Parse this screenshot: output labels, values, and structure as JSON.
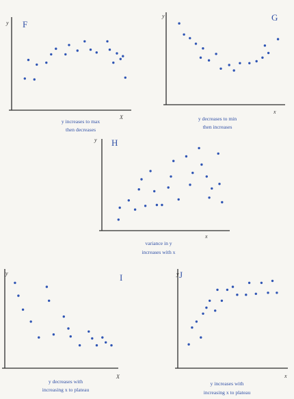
{
  "colors": {
    "axis": "#2c2c2c",
    "point": "#2f55b4",
    "text": "#2f4fa6"
  },
  "chart_data": [
    {
      "type": "scatter",
      "title": "F",
      "xlabel": "X",
      "ylabel": "y",
      "caption": [
        "y increases to max",
        "then decreases"
      ],
      "xlim": [
        0,
        10
      ],
      "ylim": [
        0,
        10
      ],
      "points": [
        [
          1.1,
          3.4
        ],
        [
          1.4,
          5.4
        ],
        [
          1.9,
          3.3
        ],
        [
          2.1,
          4.9
        ],
        [
          2.9,
          5.1
        ],
        [
          3.3,
          6.0
        ],
        [
          3.7,
          6.6
        ],
        [
          4.5,
          6.0
        ],
        [
          4.8,
          7.0
        ],
        [
          5.5,
          6.4
        ],
        [
          6.1,
          7.4
        ],
        [
          6.6,
          6.5
        ],
        [
          7.1,
          6.2
        ],
        [
          8.0,
          7.4
        ],
        [
          8.2,
          6.5
        ],
        [
          8.5,
          5.1
        ],
        [
          8.8,
          6.1
        ],
        [
          9.1,
          5.5
        ],
        [
          9.3,
          5.8
        ],
        [
          9.5,
          3.5
        ]
      ]
    },
    {
      "type": "scatter",
      "title": "G",
      "xlabel": "x",
      "ylabel": "y",
      "caption": [
        "y decreases to min",
        "then increases"
      ],
      "xlim": [
        0,
        10
      ],
      "ylim": [
        0,
        10
      ],
      "points": [
        [
          1.1,
          8.8
        ],
        [
          1.5,
          7.6
        ],
        [
          2.0,
          7.2
        ],
        [
          2.5,
          6.6
        ],
        [
          2.9,
          5.1
        ],
        [
          3.1,
          6.1
        ],
        [
          3.6,
          4.8
        ],
        [
          4.2,
          5.5
        ],
        [
          4.6,
          3.9
        ],
        [
          5.3,
          4.3
        ],
        [
          5.7,
          3.7
        ],
        [
          6.2,
          4.5
        ],
        [
          7.0,
          4.5
        ],
        [
          7.6,
          4.7
        ],
        [
          8.1,
          5.1
        ],
        [
          8.3,
          6.4
        ],
        [
          8.6,
          5.6
        ],
        [
          9.4,
          7.1
        ]
      ]
    },
    {
      "type": "scatter",
      "title": "H",
      "xlabel": "x",
      "ylabel": "y",
      "caption": [
        "variance in y",
        "increases with x"
      ],
      "xlim": [
        0,
        10
      ],
      "ylim": [
        0,
        10
      ],
      "points": [
        [
          1.3,
          1.2
        ],
        [
          1.4,
          2.5
        ],
        [
          2.1,
          3.3
        ],
        [
          2.6,
          2.3
        ],
        [
          2.9,
          4.5
        ],
        [
          3.1,
          5.6
        ],
        [
          3.4,
          2.7
        ],
        [
          3.8,
          6.5
        ],
        [
          4.1,
          4.3
        ],
        [
          4.3,
          2.8
        ],
        [
          4.7,
          2.8
        ],
        [
          5.2,
          4.7
        ],
        [
          5.4,
          5.9
        ],
        [
          5.6,
          7.6
        ],
        [
          6.0,
          3.4
        ],
        [
          6.6,
          8.1
        ],
        [
          6.9,
          5.0
        ],
        [
          7.1,
          6.3
        ],
        [
          7.6,
          9.0
        ],
        [
          7.8,
          7.2
        ],
        [
          8.2,
          5.9
        ],
        [
          8.4,
          3.6
        ],
        [
          8.6,
          4.6
        ],
        [
          9.1,
          8.4
        ],
        [
          9.2,
          5.1
        ],
        [
          9.4,
          3.1
        ]
      ]
    },
    {
      "type": "scatter",
      "title": "I",
      "xlabel": "X",
      "ylabel": "y",
      "caption": [
        "y decreases with",
        "increasing x to plateau"
      ],
      "xlim": [
        0,
        10
      ],
      "ylim": [
        0,
        10
      ],
      "points": [
        [
          0.9,
          8.6
        ],
        [
          1.2,
          7.3
        ],
        [
          1.6,
          5.9
        ],
        [
          2.3,
          4.7
        ],
        [
          3.0,
          3.1
        ],
        [
          3.7,
          8.2
        ],
        [
          3.9,
          6.8
        ],
        [
          4.3,
          3.4
        ],
        [
          5.2,
          5.2
        ],
        [
          5.6,
          4.0
        ],
        [
          5.8,
          3.2
        ],
        [
          6.6,
          2.3
        ],
        [
          7.4,
          3.7
        ],
        [
          7.7,
          3.0
        ],
        [
          8.1,
          2.3
        ],
        [
          8.6,
          3.1
        ],
        [
          8.9,
          2.6
        ],
        [
          9.4,
          2.3
        ]
      ]
    },
    {
      "type": "scatter",
      "title": "J",
      "xlabel": "x",
      "ylabel": "y",
      "caption": [
        "y increases with",
        "increasing x to plateau"
      ],
      "xlim": [
        0,
        10
      ],
      "ylim": [
        0,
        10
      ],
      "points": [
        [
          1.0,
          2.4
        ],
        [
          1.3,
          4.1
        ],
        [
          1.7,
          4.7
        ],
        [
          2.1,
          3.1
        ],
        [
          2.3,
          5.5
        ],
        [
          2.6,
          6.1
        ],
        [
          2.9,
          6.8
        ],
        [
          3.4,
          5.8
        ],
        [
          3.6,
          7.9
        ],
        [
          4.0,
          6.8
        ],
        [
          4.5,
          7.9
        ],
        [
          5.0,
          8.2
        ],
        [
          5.4,
          7.4
        ],
        [
          6.2,
          7.4
        ],
        [
          6.5,
          8.6
        ],
        [
          7.1,
          7.5
        ],
        [
          7.6,
          8.6
        ],
        [
          8.2,
          7.6
        ],
        [
          8.6,
          8.8
        ],
        [
          9.0,
          7.6
        ]
      ]
    }
  ]
}
